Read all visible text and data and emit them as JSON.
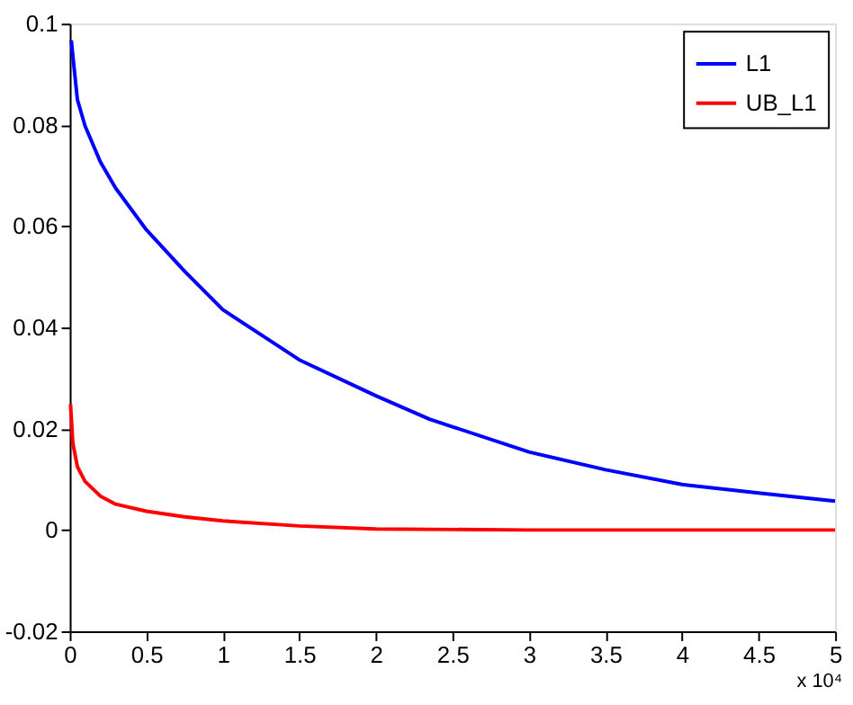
{
  "chart_data": {
    "type": "line",
    "xlim": [
      0,
      5
    ],
    "xticks": [
      0,
      0.5,
      1,
      1.5,
      2,
      2.5,
      3,
      3.5,
      4,
      4.5,
      5
    ],
    "ylim": [
      -0.02,
      0.1
    ],
    "yticks": [
      -0.02,
      0,
      0.02,
      0.04,
      0.06,
      0.08,
      0.1
    ],
    "grid": false,
    "legend": "top right",
    "marker": "none",
    "line_style": "solid",
    "annotations": [
      "x 10⁴"
    ],
    "series": [
      {
        "name": "L1",
        "color": "#0000ff",
        "x": [
          0.01,
          0.05,
          0.1,
          0.2,
          0.3,
          0.5,
          0.75,
          1,
          1.5,
          2,
          2.35,
          2.5,
          3,
          3.5,
          4,
          4.5,
          5
        ],
        "values": [
          0.0967,
          0.085,
          0.0798,
          0.0727,
          0.0675,
          0.0593,
          0.0511,
          0.0435,
          0.0336,
          0.0265,
          0.0219,
          0.0204,
          0.0154,
          0.0119,
          0.009,
          0.0073,
          0.0057
        ]
      },
      {
        "name": "UB_L1",
        "color": "#ff0000",
        "x": [
          0.005,
          0.02,
          0.05,
          0.1,
          0.2,
          0.3,
          0.5,
          0.75,
          1,
          1.5,
          2,
          3,
          4,
          5
        ],
        "values": [
          0.0248,
          0.0172,
          0.0125,
          0.0096,
          0.0067,
          0.0051,
          0.0037,
          0.0026,
          0.0018,
          0.0008,
          0.0002,
          0.0,
          0.0,
          0.0
        ]
      }
    ]
  }
}
